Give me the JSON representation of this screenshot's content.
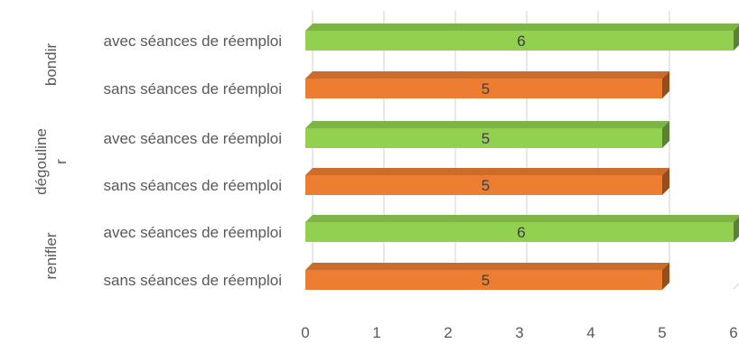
{
  "chart_data": {
    "type": "bar",
    "orientation": "horizontal",
    "style": "3d",
    "title": "",
    "xlabel": "",
    "ylabel": "",
    "xlim": [
      0,
      6
    ],
    "x_ticks": [
      "0",
      "1",
      "2",
      "3",
      "4",
      "5",
      "6"
    ],
    "grid": true,
    "legend": "none",
    "groups": [
      {
        "label": "bondir",
        "bars": [
          {
            "category": "avec séances de réemploi",
            "value": 6,
            "label": "6",
            "color": "#92D050"
          },
          {
            "category": "sans séances de réemploi",
            "value": 5,
            "label": "5",
            "color": "#ED7D31"
          }
        ]
      },
      {
        "label_lines": [
          "dégouline",
          "r"
        ],
        "bars": [
          {
            "category": "avec séances de réemploi",
            "value": 5,
            "label": "5",
            "color": "#92D050"
          },
          {
            "category": "sans séances de réemploi",
            "value": 5,
            "label": "5",
            "color": "#ED7D31"
          }
        ]
      },
      {
        "label": "renifler",
        "bars": [
          {
            "category": "avec séances de réemploi",
            "value": 6,
            "label": "6",
            "color": "#92D050"
          },
          {
            "category": "sans séances de réemploi",
            "value": 5,
            "label": "5",
            "color": "#ED7D31"
          }
        ]
      }
    ],
    "colors": {
      "avec": "#92D050",
      "sans": "#ED7D31",
      "grid": "#D9D9D9",
      "text": "#595959"
    }
  }
}
